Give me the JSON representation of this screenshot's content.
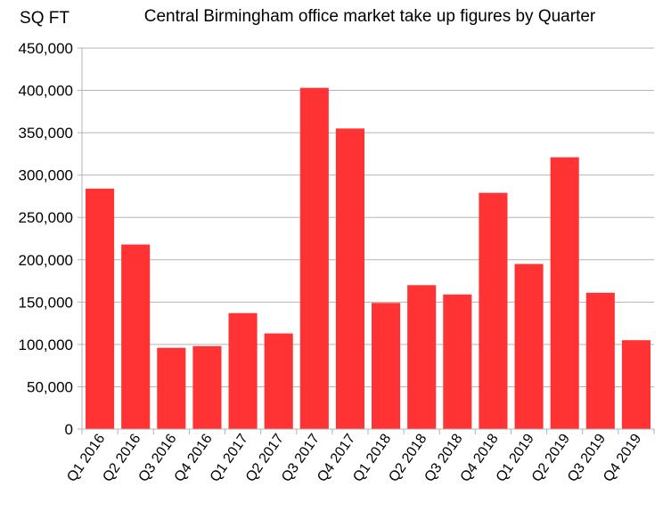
{
  "chart_data": {
    "type": "bar",
    "title": "Central Birmingham office market take up figures by Quarter",
    "ylabel": "SQ FT",
    "xlabel": "",
    "ylim": [
      0,
      450000
    ],
    "ytick_step": 50000,
    "yticks": [
      "0",
      "50,000",
      "100,000",
      "150,000",
      "200,000",
      "250,000",
      "300,000",
      "350,000",
      "400,000",
      "450,000"
    ],
    "grid": true,
    "bar_color": "#ff3333",
    "categories": [
      "Q1 2016",
      "Q2 2016",
      "Q3 2016",
      "Q4 2016",
      "Q1 2017",
      "Q2 2017",
      "Q3 2017",
      "Q4 2017",
      "Q1 2018",
      "Q2 2018",
      "Q3 2018",
      "Q4 2018",
      "Q1 2019",
      "Q2 2019",
      "Q3 2019",
      "Q4 2019"
    ],
    "values": [
      284000,
      218000,
      96000,
      98000,
      137000,
      113000,
      403000,
      355000,
      149000,
      170000,
      159000,
      279000,
      195000,
      321000,
      161000,
      105000
    ]
  }
}
